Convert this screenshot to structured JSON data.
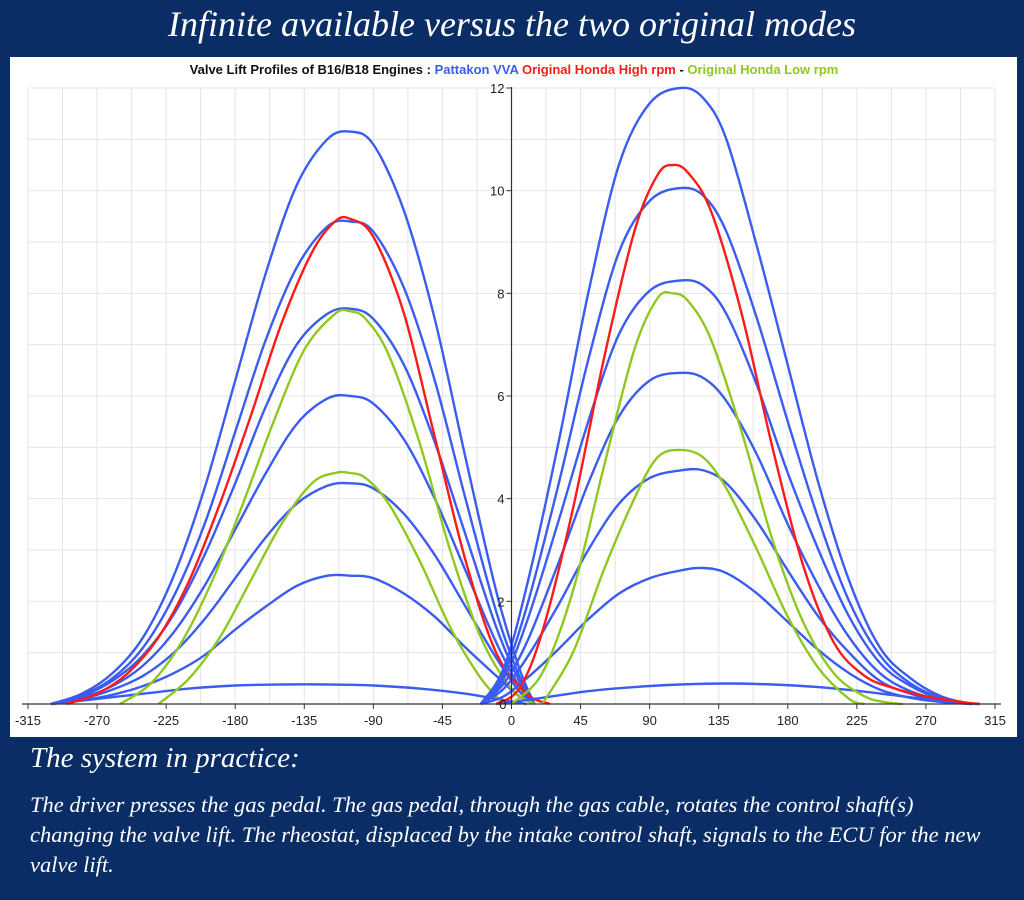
{
  "slide": {
    "title": "Infinite available versus the two original modes",
    "section_heading": "The system in practice:",
    "body": "The driver presses the gas pedal. The gas pedal, through the gas cable, rotates the control shaft(s) changing the valve lift. The rheostat, displaced by the intake control shaft, signals to the ECU for the new valve lift."
  },
  "colors": {
    "background": "#0a2d66",
    "pattakon": "#3b5cf0",
    "honda_high": "#ff1a1a",
    "honda_low": "#90c820",
    "grid": "#e4e4e4",
    "axis": "#333333"
  },
  "chart_data": {
    "type": "line",
    "title_parts": [
      {
        "text": "Valve Lift Profiles of B16/B18 Engines  :  ",
        "color": "#111111"
      },
      {
        "text": "Pattakon VVA",
        "color": "#3b5cf0"
      },
      {
        "text": "   ",
        "color": "#111111"
      },
      {
        "text": "Original Honda High rpm",
        "color": "#ff1a1a"
      },
      {
        "text": " - ",
        "color": "#111111"
      },
      {
        "text": "Original Honda Low rpm",
        "color": "#90c820"
      }
    ],
    "xlim": [
      -315,
      315
    ],
    "ylim": [
      0,
      12
    ],
    "xticks": [
      -315,
      -270,
      -225,
      -180,
      -135,
      -90,
      -45,
      0,
      45,
      90,
      135,
      180,
      225,
      270,
      315
    ],
    "yticks": [
      2,
      4,
      6,
      8,
      10,
      12
    ],
    "grid": true,
    "series": [
      {
        "group": "pattakon",
        "valve": "exhaust",
        "color": "#3b5cf0",
        "x": [
          -300,
          -280,
          -260,
          -240,
          -220,
          -200,
          -180,
          -160,
          -140,
          -120,
          -105,
          -90,
          -70,
          -50,
          -30,
          -10,
          5,
          15
        ],
        "y": [
          0,
          0.2,
          0.6,
          1.3,
          2.5,
          4.2,
          6.3,
          8.4,
          10.1,
          11.0,
          11.15,
          10.9,
          9.6,
          7.5,
          4.8,
          2.2,
          0.7,
          0
        ]
      },
      {
        "group": "pattakon",
        "valve": "exhaust",
        "color": "#3b5cf0",
        "x": [
          -300,
          -280,
          -260,
          -240,
          -220,
          -200,
          -180,
          -160,
          -140,
          -120,
          -105,
          -90,
          -70,
          -50,
          -30,
          -10,
          5,
          15
        ],
        "y": [
          0,
          0.17,
          0.5,
          1.1,
          2.1,
          3.5,
          5.3,
          7.1,
          8.5,
          9.3,
          9.4,
          9.2,
          8.1,
          6.3,
          4.0,
          1.8,
          0.55,
          0
        ]
      },
      {
        "group": "pattakon",
        "valve": "exhaust",
        "color": "#3b5cf0",
        "x": [
          -300,
          -280,
          -260,
          -240,
          -220,
          -200,
          -180,
          -160,
          -140,
          -120,
          -105,
          -90,
          -70,
          -50,
          -30,
          -10,
          5,
          15
        ],
        "y": [
          0,
          0.15,
          0.45,
          0.95,
          1.75,
          2.9,
          4.3,
          5.8,
          7.0,
          7.6,
          7.7,
          7.5,
          6.6,
          5.1,
          3.3,
          1.5,
          0.45,
          0
        ]
      },
      {
        "group": "pattakon",
        "valve": "exhaust",
        "color": "#3b5cf0",
        "x": [
          -300,
          -280,
          -260,
          -240,
          -220,
          -200,
          -180,
          -160,
          -140,
          -120,
          -105,
          -90,
          -70,
          -50,
          -30,
          -10,
          5,
          15
        ],
        "y": [
          0,
          0.12,
          0.35,
          0.75,
          1.4,
          2.3,
          3.4,
          4.5,
          5.45,
          5.95,
          6.0,
          5.85,
          5.15,
          4.0,
          2.6,
          1.2,
          0.35,
          0
        ]
      },
      {
        "group": "pattakon",
        "valve": "exhaust",
        "color": "#3b5cf0",
        "x": [
          -300,
          -280,
          -260,
          -240,
          -220,
          -200,
          -180,
          -160,
          -140,
          -120,
          -105,
          -90,
          -70,
          -50,
          -30,
          -10,
          5,
          15
        ],
        "y": [
          0,
          0.1,
          0.28,
          0.55,
          1.0,
          1.65,
          2.45,
          3.25,
          3.9,
          4.25,
          4.3,
          4.2,
          3.7,
          2.9,
          1.9,
          0.9,
          0.25,
          0
        ]
      },
      {
        "group": "pattakon",
        "valve": "exhaust",
        "color": "#3b5cf0",
        "x": [
          -300,
          -280,
          -260,
          -240,
          -220,
          -200,
          -180,
          -160,
          -140,
          -120,
          -105,
          -90,
          -70,
          -50,
          -30,
          -10,
          5,
          15
        ],
        "y": [
          0,
          0.07,
          0.18,
          0.35,
          0.6,
          0.95,
          1.45,
          1.9,
          2.3,
          2.5,
          2.5,
          2.45,
          2.15,
          1.7,
          1.1,
          0.55,
          0.15,
          0
        ]
      },
      {
        "group": "pattakon",
        "valve": "exhaust",
        "color": "#3b5cf0",
        "x": [
          -300,
          -270,
          -240,
          -210,
          -180,
          -150,
          -120,
          -90,
          -60,
          -30,
          0,
          10
        ],
        "y": [
          0,
          0.1,
          0.2,
          0.3,
          0.36,
          0.38,
          0.38,
          0.36,
          0.3,
          0.2,
          0.05,
          0
        ]
      },
      {
        "group": "honda_high",
        "valve": "exhaust",
        "color": "#ff1a1a",
        "x": [
          -290,
          -270,
          -250,
          -230,
          -210,
          -190,
          -170,
          -150,
          -130,
          -115,
          -105,
          -90,
          -70,
          -50,
          -30,
          -10,
          10,
          25
        ],
        "y": [
          0,
          0.2,
          0.6,
          1.3,
          2.4,
          3.9,
          5.6,
          7.4,
          8.8,
          9.4,
          9.45,
          9.1,
          7.6,
          5.2,
          2.8,
          1.0,
          0.2,
          0
        ]
      },
      {
        "group": "honda_low",
        "valve": "exhaust",
        "color": "#90c820",
        "x": [
          -255,
          -235,
          -215,
          -195,
          -175,
          -155,
          -135,
          -115,
          -105,
          -95,
          -80,
          -60,
          -40,
          -20,
          0,
          15
        ],
        "y": [
          0,
          0.4,
          1.2,
          2.4,
          3.9,
          5.5,
          6.9,
          7.6,
          7.65,
          7.5,
          6.8,
          5.1,
          3.0,
          1.3,
          0.3,
          0
        ]
      },
      {
        "group": "honda_low",
        "valve": "exhaust",
        "color": "#90c820",
        "x": [
          -230,
          -210,
          -190,
          -170,
          -150,
          -130,
          -115,
          -105,
          -95,
          -80,
          -60,
          -40,
          -20,
          -5
        ],
        "y": [
          0,
          0.5,
          1.3,
          2.4,
          3.5,
          4.3,
          4.5,
          4.5,
          4.4,
          3.9,
          2.8,
          1.5,
          0.5,
          0
        ]
      },
      {
        "group": "pattakon",
        "valve": "intake",
        "color": "#3b5cf0",
        "x": [
          -20,
          -5,
          10,
          30,
          50,
          70,
          90,
          110,
          125,
          140,
          160,
          180,
          200,
          220,
          240,
          260,
          280,
          300
        ],
        "y": [
          0,
          0.7,
          2.3,
          5.0,
          8.0,
          10.5,
          11.7,
          12.0,
          11.8,
          11.0,
          8.9,
          6.6,
          4.3,
          2.4,
          1.1,
          0.5,
          0.15,
          0
        ]
      },
      {
        "group": "pattakon",
        "valve": "intake",
        "color": "#3b5cf0",
        "x": [
          -20,
          -5,
          10,
          30,
          50,
          70,
          90,
          110,
          125,
          140,
          160,
          180,
          200,
          220,
          240,
          260,
          280,
          300
        ],
        "y": [
          0,
          0.6,
          1.9,
          4.2,
          6.7,
          8.8,
          9.8,
          10.05,
          9.9,
          9.2,
          7.5,
          5.5,
          3.6,
          2.0,
          0.95,
          0.4,
          0.12,
          0
        ]
      },
      {
        "group": "pattakon",
        "valve": "intake",
        "color": "#3b5cf0",
        "x": [
          -20,
          -5,
          10,
          30,
          50,
          70,
          90,
          110,
          125,
          140,
          160,
          180,
          200,
          220,
          240,
          260,
          280,
          300
        ],
        "y": [
          0,
          0.5,
          1.6,
          3.5,
          5.5,
          7.2,
          8.05,
          8.25,
          8.15,
          7.6,
          6.2,
          4.5,
          3.0,
          1.7,
          0.8,
          0.35,
          0.1,
          0
        ]
      },
      {
        "group": "pattakon",
        "valve": "intake",
        "color": "#3b5cf0",
        "x": [
          -20,
          -5,
          10,
          30,
          50,
          70,
          90,
          110,
          125,
          140,
          160,
          180,
          200,
          220,
          240,
          260,
          280,
          300
        ],
        "y": [
          0,
          0.4,
          1.2,
          2.7,
          4.3,
          5.6,
          6.3,
          6.45,
          6.35,
          5.9,
          4.85,
          3.5,
          2.3,
          1.3,
          0.6,
          0.25,
          0.08,
          0
        ]
      },
      {
        "group": "pattakon",
        "valve": "intake",
        "color": "#3b5cf0",
        "x": [
          -20,
          -5,
          10,
          30,
          50,
          70,
          90,
          110,
          125,
          140,
          160,
          180,
          200,
          220,
          240,
          260,
          280,
          300
        ],
        "y": [
          0,
          0.3,
          0.9,
          1.9,
          3.0,
          3.9,
          4.4,
          4.55,
          4.55,
          4.3,
          3.55,
          2.6,
          1.7,
          1.0,
          0.45,
          0.2,
          0.06,
          0
        ]
      },
      {
        "group": "pattakon",
        "valve": "intake",
        "color": "#3b5cf0",
        "x": [
          -20,
          -5,
          10,
          30,
          50,
          70,
          90,
          110,
          125,
          140,
          160,
          180,
          200,
          220,
          240,
          260,
          280,
          300
        ],
        "y": [
          0,
          0.15,
          0.5,
          1.05,
          1.65,
          2.15,
          2.45,
          2.6,
          2.65,
          2.55,
          2.15,
          1.6,
          1.05,
          0.6,
          0.28,
          0.12,
          0.04,
          0
        ]
      },
      {
        "group": "pattakon",
        "valve": "intake",
        "color": "#3b5cf0",
        "x": [
          -10,
          20,
          50,
          80,
          110,
          140,
          170,
          200,
          230,
          260,
          290,
          305
        ],
        "y": [
          0,
          0.12,
          0.25,
          0.33,
          0.38,
          0.4,
          0.38,
          0.33,
          0.24,
          0.13,
          0.03,
          0
        ]
      },
      {
        "group": "honda_high",
        "valve": "intake",
        "color": "#ff1a1a",
        "x": [
          -10,
          5,
          20,
          40,
          60,
          80,
          95,
          105,
          115,
          130,
          150,
          170,
          190,
          210,
          230,
          250,
          270,
          290,
          305
        ],
        "y": [
          0,
          0.3,
          1.4,
          3.8,
          6.7,
          9.2,
          10.3,
          10.5,
          10.35,
          9.6,
          7.6,
          5.0,
          2.7,
          1.2,
          0.55,
          0.3,
          0.15,
          0.05,
          0
        ]
      },
      {
        "group": "honda_low",
        "valve": "intake",
        "color": "#90c820",
        "x": [
          0,
          20,
          40,
          60,
          80,
          95,
          105,
          115,
          130,
          150,
          170,
          190,
          210,
          230,
          245,
          255
        ],
        "y": [
          0,
          0.6,
          2.2,
          4.6,
          6.9,
          7.9,
          8.0,
          7.85,
          7.1,
          5.3,
          3.2,
          1.6,
          0.6,
          0.15,
          0.03,
          0
        ]
      },
      {
        "group": "honda_low",
        "valve": "intake",
        "color": "#90c820",
        "x": [
          20,
          40,
          60,
          80,
          95,
          110,
          125,
          140,
          160,
          180,
          200,
          220,
          230
        ],
        "y": [
          0,
          1.0,
          2.6,
          4.0,
          4.8,
          4.95,
          4.8,
          4.2,
          3.0,
          1.7,
          0.7,
          0.1,
          0
        ]
      }
    ]
  }
}
